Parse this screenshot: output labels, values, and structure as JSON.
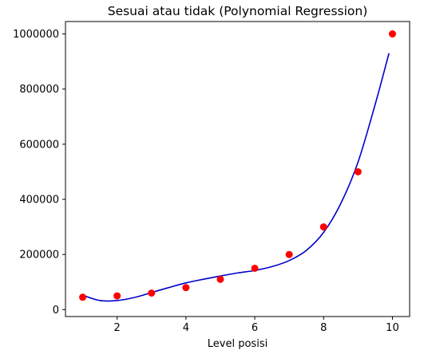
{
  "chart_data": {
    "type": "scatter",
    "title": "Sesuai atau tidak (Polynomial Regression)",
    "xlabel": "Level posisi",
    "ylabel": "",
    "xlim": [
      0.5,
      10.5
    ],
    "ylim": [
      -25000,
      1045000
    ],
    "xticks": [
      2,
      4,
      6,
      8,
      10
    ],
    "yticks": [
      0,
      200000,
      400000,
      600000,
      800000,
      1000000
    ],
    "grid": false,
    "series": [
      {
        "kind": "scatter",
        "color": "#ff0000",
        "x": [
          1,
          2,
          3,
          4,
          5,
          6,
          7,
          8,
          9,
          10
        ],
        "y": [
          45000,
          50000,
          60000,
          80000,
          110000,
          150000,
          200000,
          300000,
          500000,
          1000000
        ]
      },
      {
        "kind": "line",
        "color": "#0000cc",
        "x": [
          1,
          1.5,
          2,
          2.5,
          3,
          3.5,
          4,
          4.5,
          5,
          5.5,
          6,
          6.5,
          7,
          7.5,
          8,
          8.5,
          9,
          9.5,
          9.9
        ],
        "y": [
          52000,
          33000,
          33000,
          44000,
          62000,
          80000,
          97000,
          110000,
          122000,
          133000,
          142000,
          156000,
          178000,
          215000,
          280000,
          385000,
          535000,
          745000,
          930000
        ]
      }
    ]
  }
}
